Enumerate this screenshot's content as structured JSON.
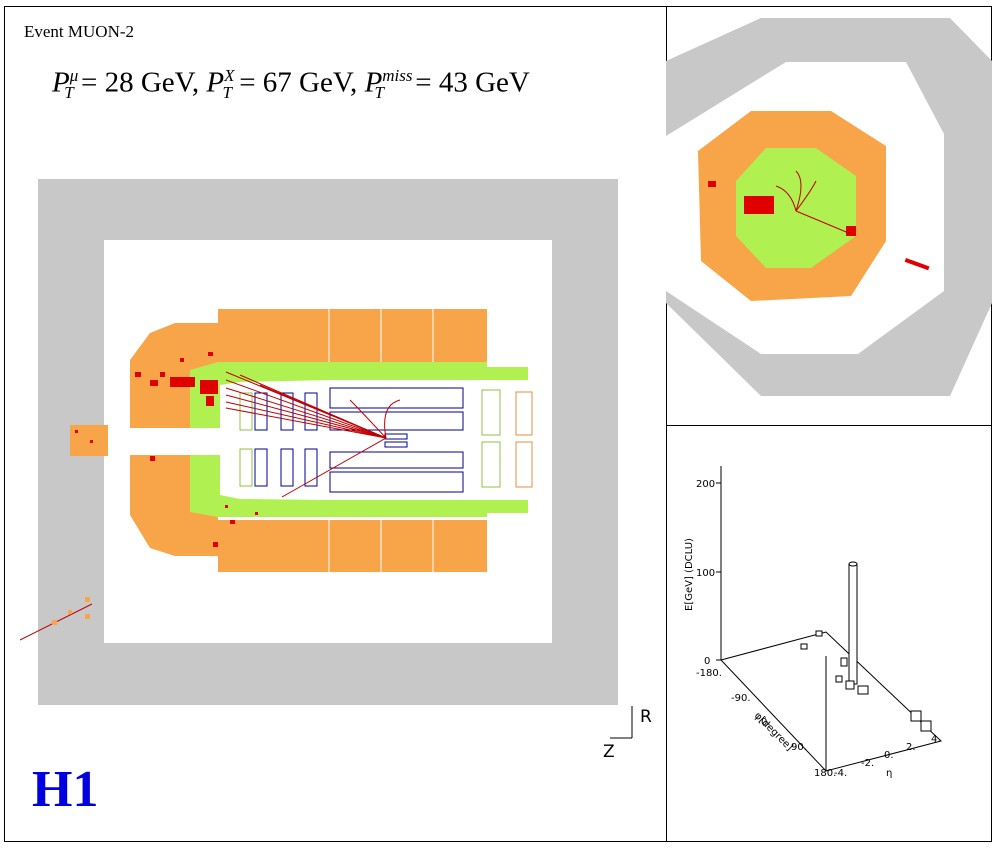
{
  "event": {
    "name": "Event MUON-2",
    "formula": {
      "mu_sup": "μ",
      "mu_value": " = 28 GeV, ",
      "x_sup": "X",
      "x_value": " = 67 GeV, ",
      "miss_sup": "miss",
      "miss_value": " = 43 GeV",
      "p_symbol": "P",
      "t_sub": "T"
    }
  },
  "logo": {
    "text": "H1"
  },
  "side_view": {
    "axis_r": "R",
    "axis_z": "Z"
  },
  "lego_plot": {
    "ylabel": "E[GeV] (DCLU)",
    "y_ticks": [
      "200",
      "100",
      "0"
    ],
    "phi_label": "φ[degree]",
    "phi_ticks": [
      "-180.",
      "-90.",
      "0.",
      "90.",
      "180."
    ],
    "eta_label": "η",
    "eta_ticks": [
      "-4.",
      "-2.",
      "0.",
      "2.",
      "4."
    ]
  },
  "colors": {
    "muon_system": "#c8c8c8",
    "hadronic_calorimeter": "#f8a448",
    "em_calorimeter": "#b0f050",
    "tracks_and_deposits": "#e00000",
    "tracker_outline": "#000090",
    "logo": "#0000e0"
  }
}
